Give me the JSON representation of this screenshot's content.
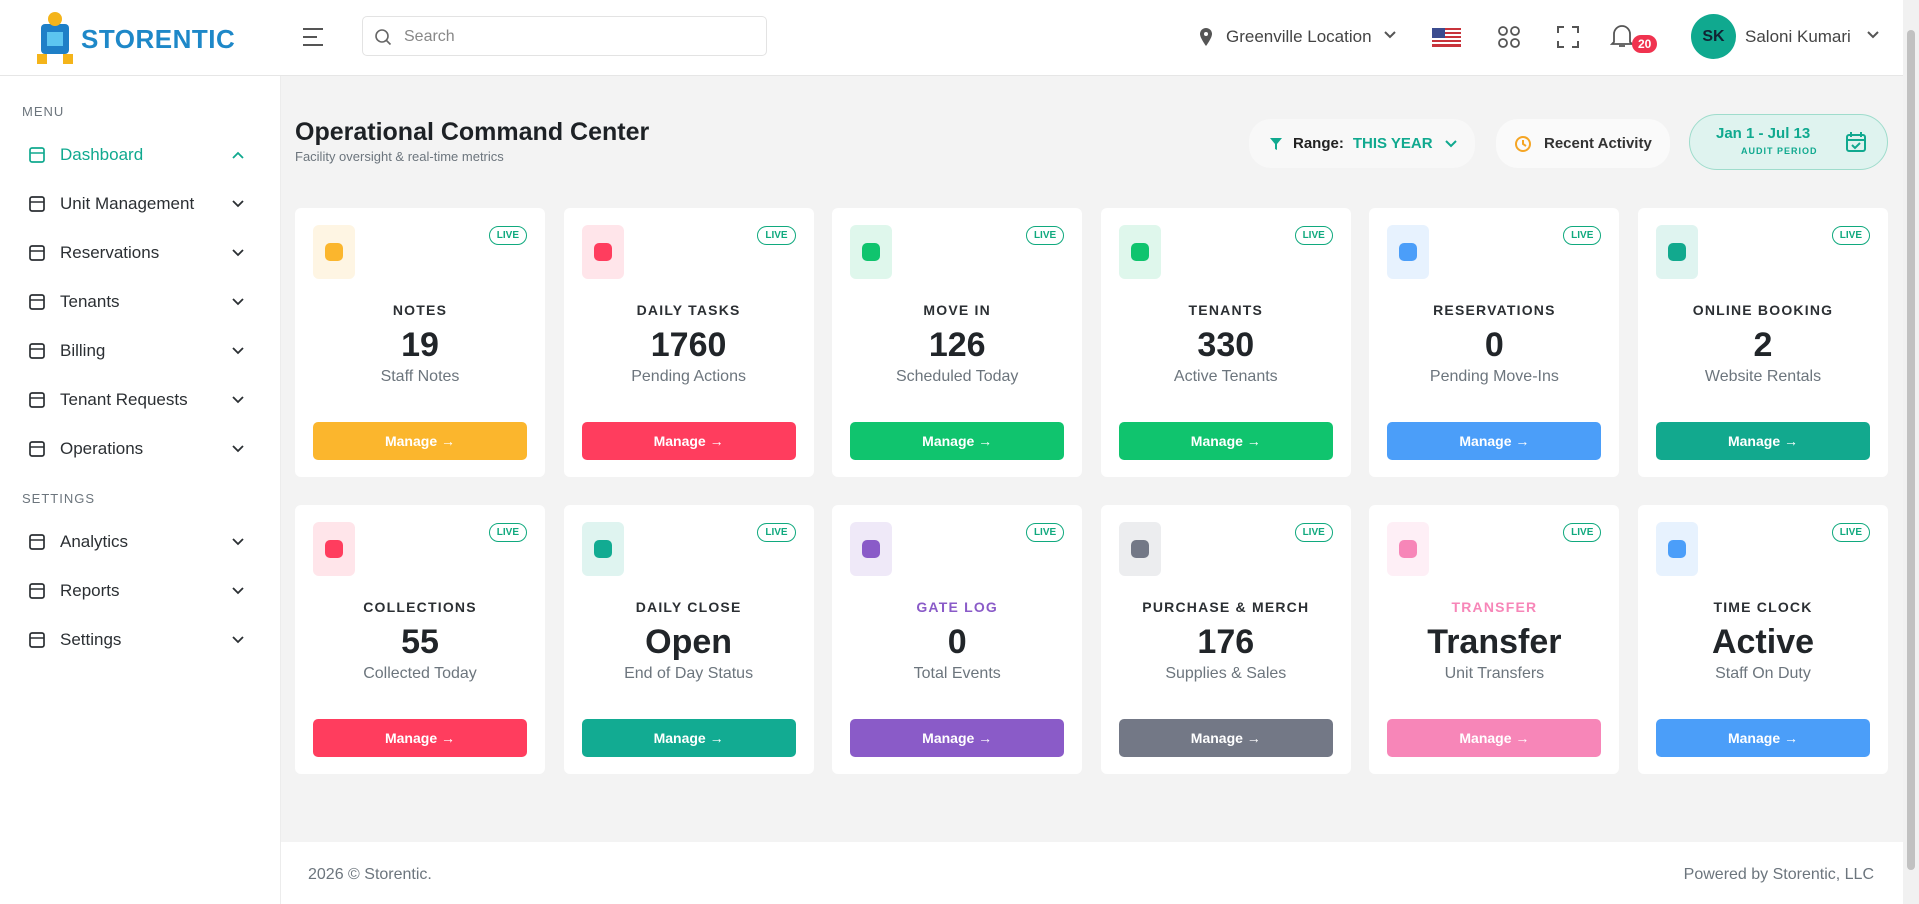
{
  "header": {
    "logo": "STORENTIC",
    "search_placeholder": "Search",
    "location": "Greenville Location",
    "notifications": "20",
    "user_initials": "SK",
    "user_name": "Saloni Kumari"
  },
  "sidebar": {
    "menu_heading": "MENU",
    "menu_items": [
      "Dashboard",
      "Unit Management",
      "Reservations",
      "Tenants",
      "Billing",
      "Tenant Requests",
      "Operations"
    ],
    "settings_heading": "SETTINGS",
    "settings_items": [
      "Analytics",
      "Reports",
      "Settings"
    ]
  },
  "page": {
    "title": "Operational Command Center",
    "subtitle": "Facility oversight & real-time metrics",
    "range_label": "Range:",
    "range_value": "THIS YEAR",
    "recent_activity": "Recent Activity",
    "date_range": "Jan 1 - Jul 13",
    "date_caption": "AUDIT PERIOD"
  },
  "cards": [
    {
      "title": "NOTES",
      "value": 19,
      "subtitle": "Staff Notes",
      "badge": "LIVE",
      "button": "Manage →",
      "color": "#fbb62d"
    },
    {
      "title": "DAILY TASKS",
      "value": 1760,
      "subtitle": "Pending Actions",
      "badge": "LIVE",
      "button": "Manage →",
      "color": "#ff3d5e"
    },
    {
      "title": "MOVE IN",
      "value": 126,
      "subtitle": "Scheduled Today",
      "badge": "LIVE",
      "button": "Manage →",
      "color": "#10c46e"
    },
    {
      "title": "TENANTS",
      "value": 330,
      "subtitle": "Active Tenants",
      "badge": "LIVE",
      "button": "Manage →",
      "color": "#10c46e"
    },
    {
      "title": "RESERVATIONS",
      "value": 0,
      "subtitle": "Pending Move-Ins",
      "badge": "LIVE",
      "button": "Manage →",
      "color": "#4b9ef9"
    },
    {
      "title": "ONLINE BOOKING",
      "value": 2,
      "subtitle": "Website Rentals",
      "badge": "LIVE",
      "button": "Manage →",
      "color": "#12a98e"
    },
    {
      "title": "COLLECTIONS",
      "value": 55,
      "subtitle": "Collected Today",
      "badge": "LIVE",
      "button": "Manage →",
      "color": "#ff3d5e"
    },
    {
      "title": "DAILY CLOSE",
      "value": "Open",
      "subtitle": "End of Day Status",
      "badge": "LIVE",
      "button": "Manage →",
      "color": "#12ab92"
    },
    {
      "title": "GATE LOG",
      "value": 0,
      "subtitle": "Total Events",
      "badge": "LIVE",
      "button": "Manage →",
      "color": "#8a5bc8",
      "title_colored": true
    },
    {
      "title": "PURCHASE & MERCH",
      "value": 176,
      "subtitle": "Supplies & Sales",
      "badge": "LIVE",
      "button": "Manage →",
      "color": "#737886"
    },
    {
      "title": "TRANSFER",
      "value": "Transfer",
      "subtitle": "Unit Transfers",
      "badge": "LIVE",
      "button": "Manage →",
      "color": "#f786b8",
      "title_colored": true
    },
    {
      "title": "TIME CLOCK",
      "value": "Active",
      "subtitle": "Staff On Duty",
      "badge": "LIVE",
      "button": "Manage →",
      "color": "#4b9ef9"
    }
  ],
  "footer": {
    "copyright": "2026 © Storentic.",
    "powered": "Powered by Storentic, LLC"
  }
}
